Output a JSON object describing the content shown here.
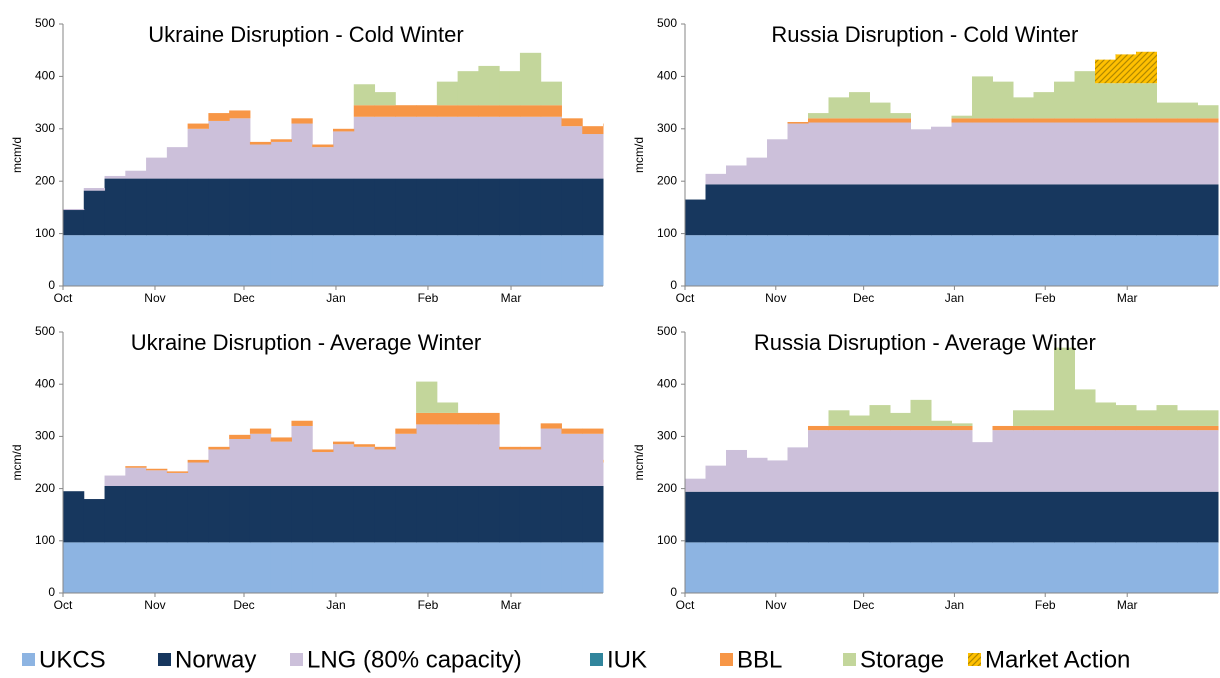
{
  "chart_data": [
    {
      "type": "area",
      "title": "Ukraine Disruption - Cold Winter",
      "ylabel": "mcm/d",
      "x": [
        0,
        7,
        14,
        21,
        28,
        35,
        42,
        49,
        56,
        63,
        70,
        77,
        84,
        91,
        98,
        105,
        112,
        119,
        126,
        133,
        140,
        147,
        154,
        161,
        168,
        175,
        182
      ],
      "xlim": [
        0,
        182
      ],
      "xticks": [
        {
          "value": 0,
          "label": "Oct"
        },
        {
          "value": 31,
          "label": "Nov"
        },
        {
          "value": 61,
          "label": "Dec"
        },
        {
          "value": 92,
          "label": "Jan"
        },
        {
          "value": 123,
          "label": "Feb"
        },
        {
          "value": 151,
          "label": "Mar"
        }
      ],
      "ylim": [
        0,
        500
      ],
      "yticks": [
        0,
        100,
        200,
        300,
        400,
        500
      ],
      "series": [
        {
          "name": "UKCS",
          "color": "#8db4e2",
          "values": [
            97,
            97,
            97,
            97,
            97,
            97,
            97,
            97,
            97,
            97,
            97,
            97,
            97,
            97,
            97,
            97,
            97,
            97,
            97,
            97,
            97,
            97,
            97,
            97,
            97,
            97,
            97
          ]
        },
        {
          "name": "Norway",
          "color": "#17375e",
          "values": [
            48,
            85,
            108,
            108,
            108,
            108,
            108,
            108,
            108,
            108,
            108,
            108,
            108,
            108,
            108,
            108,
            108,
            108,
            108,
            108,
            108,
            108,
            108,
            108,
            108,
            108,
            108
          ]
        },
        {
          "name": "LNG (80% capacity)",
          "color": "#ccc0da",
          "values": [
            2,
            5,
            5,
            15,
            40,
            60,
            95,
            110,
            115,
            65,
            70,
            105,
            60,
            90,
            118,
            118,
            118,
            118,
            118,
            118,
            118,
            118,
            118,
            118,
            100,
            85,
            95
          ]
        },
        {
          "name": "IUK",
          "color": "#31859c",
          "values": [
            0,
            0,
            0,
            0,
            0,
            0,
            0,
            0,
            0,
            0,
            0,
            0,
            0,
            0,
            0,
            0,
            0,
            0,
            0,
            0,
            0,
            0,
            0,
            0,
            0,
            0,
            0
          ]
        },
        {
          "name": "BBL",
          "color": "#f79646",
          "values": [
            0,
            0,
            0,
            0,
            0,
            0,
            10,
            15,
            15,
            5,
            5,
            10,
            5,
            5,
            22,
            22,
            22,
            22,
            22,
            22,
            22,
            22,
            22,
            22,
            15,
            15,
            10
          ]
        },
        {
          "name": "Storage",
          "color": "#c3d69b",
          "values": [
            0,
            0,
            0,
            0,
            0,
            0,
            0,
            0,
            0,
            0,
            0,
            0,
            0,
            0,
            40,
            25,
            0,
            0,
            45,
            65,
            75,
            65,
            100,
            45,
            0,
            0,
            0
          ]
        },
        {
          "name": "Market Action",
          "color": "#ffc000",
          "values": [
            0,
            0,
            0,
            0,
            0,
            0,
            0,
            0,
            0,
            0,
            0,
            0,
            0,
            0,
            0,
            0,
            0,
            0,
            0,
            0,
            0,
            0,
            0,
            0,
            0,
            0,
            0
          ]
        }
      ]
    },
    {
      "type": "area",
      "title": "Russia Disruption - Cold Winter",
      "ylabel": "mcm/d",
      "x": [
        0,
        7,
        14,
        21,
        28,
        35,
        42,
        49,
        56,
        63,
        70,
        77,
        84,
        91,
        98,
        105,
        112,
        119,
        126,
        133,
        140,
        147,
        154,
        161,
        168,
        175,
        182
      ],
      "xlim": [
        0,
        182
      ],
      "xticks": [
        {
          "value": 0,
          "label": "Oct"
        },
        {
          "value": 31,
          "label": "Nov"
        },
        {
          "value": 61,
          "label": "Dec"
        },
        {
          "value": 92,
          "label": "Jan"
        },
        {
          "value": 123,
          "label": "Feb"
        },
        {
          "value": 151,
          "label": "Mar"
        }
      ],
      "ylim": [
        0,
        500
      ],
      "yticks": [
        0,
        100,
        200,
        300,
        400,
        500
      ],
      "series": [
        {
          "name": "UKCS",
          "color": "#8db4e2",
          "values": [
            97,
            97,
            97,
            97,
            97,
            97,
            97,
            97,
            97,
            97,
            97,
            97,
            97,
            97,
            97,
            97,
            97,
            97,
            97,
            97,
            97,
            97,
            97,
            97,
            97,
            97,
            97
          ]
        },
        {
          "name": "Norway",
          "color": "#17375e",
          "values": [
            68,
            97,
            97,
            97,
            97,
            97,
            97,
            97,
            97,
            97,
            97,
            97,
            97,
            97,
            97,
            97,
            97,
            97,
            97,
            97,
            97,
            97,
            97,
            97,
            97,
            97,
            97
          ]
        },
        {
          "name": "LNG (80% capacity)",
          "color": "#ccc0da",
          "values": [
            0,
            20,
            36,
            51,
            86,
            116,
            118,
            118,
            118,
            118,
            118,
            105,
            110,
            118,
            118,
            118,
            118,
            118,
            118,
            118,
            118,
            118,
            118,
            118,
            118,
            118,
            118
          ]
        },
        {
          "name": "IUK",
          "color": "#31859c",
          "values": [
            0,
            0,
            0,
            0,
            0,
            0,
            0,
            0,
            0,
            0,
            0,
            0,
            0,
            0,
            0,
            0,
            0,
            0,
            0,
            0,
            0,
            0,
            0,
            0,
            0,
            0,
            0
          ]
        },
        {
          "name": "BBL",
          "color": "#f79646",
          "values": [
            0,
            0,
            0,
            0,
            0,
            3,
            8,
            8,
            8,
            8,
            8,
            0,
            0,
            8,
            8,
            8,
            8,
            8,
            8,
            8,
            8,
            8,
            8,
            8,
            8,
            8,
            8
          ]
        },
        {
          "name": "Storage",
          "color": "#c3d69b",
          "values": [
            0,
            0,
            0,
            0,
            0,
            0,
            10,
            40,
            50,
            30,
            10,
            0,
            0,
            5,
            80,
            70,
            40,
            50,
            70,
            90,
            67,
            67,
            67,
            30,
            30,
            25,
            20
          ]
        },
        {
          "name": "Market Action",
          "color": "#ffc000",
          "values": [
            0,
            0,
            0,
            0,
            0,
            0,
            0,
            0,
            0,
            0,
            0,
            0,
            0,
            0,
            0,
            0,
            0,
            0,
            0,
            0,
            45,
            55,
            60,
            0,
            0,
            0,
            0
          ]
        }
      ]
    },
    {
      "type": "area",
      "title": "Ukraine Disruption - Average Winter",
      "ylabel": "mcm/d",
      "x": [
        0,
        7,
        14,
        21,
        28,
        35,
        42,
        49,
        56,
        63,
        70,
        77,
        84,
        91,
        98,
        105,
        112,
        119,
        126,
        133,
        140,
        147,
        154,
        161,
        168,
        175,
        182
      ],
      "xlim": [
        0,
        182
      ],
      "xticks": [
        {
          "value": 0,
          "label": "Oct"
        },
        {
          "value": 31,
          "label": "Nov"
        },
        {
          "value": 61,
          "label": "Dec"
        },
        {
          "value": 92,
          "label": "Jan"
        },
        {
          "value": 123,
          "label": "Feb"
        },
        {
          "value": 151,
          "label": "Mar"
        }
      ],
      "ylim": [
        0,
        500
      ],
      "yticks": [
        0,
        100,
        200,
        300,
        400,
        500
      ],
      "series": [
        {
          "name": "UKCS",
          "color": "#8db4e2",
          "values": [
            97,
            97,
            97,
            97,
            97,
            97,
            97,
            97,
            97,
            97,
            97,
            97,
            97,
            97,
            97,
            97,
            97,
            97,
            97,
            97,
            97,
            97,
            97,
            97,
            97,
            97,
            97
          ]
        },
        {
          "name": "Norway",
          "color": "#17375e",
          "values": [
            98,
            83,
            108,
            108,
            108,
            108,
            108,
            108,
            108,
            108,
            108,
            108,
            108,
            108,
            108,
            108,
            108,
            108,
            108,
            108,
            108,
            108,
            108,
            108,
            108,
            108,
            108
          ]
        },
        {
          "name": "LNG (80% capacity)",
          "color": "#ccc0da",
          "values": [
            0,
            0,
            20,
            35,
            30,
            25,
            45,
            70,
            90,
            100,
            85,
            115,
            65,
            80,
            75,
            70,
            100,
            118,
            118,
            118,
            118,
            70,
            70,
            110,
            100,
            100,
            45
          ]
        },
        {
          "name": "IUK",
          "color": "#31859c",
          "values": [
            0,
            0,
            0,
            0,
            0,
            0,
            0,
            0,
            0,
            0,
            0,
            0,
            0,
            0,
            0,
            0,
            0,
            0,
            0,
            0,
            0,
            0,
            0,
            0,
            0,
            0,
            0
          ]
        },
        {
          "name": "BBL",
          "color": "#f79646",
          "values": [
            0,
            0,
            0,
            3,
            3,
            3,
            5,
            5,
            8,
            10,
            8,
            10,
            5,
            5,
            5,
            5,
            10,
            22,
            22,
            22,
            22,
            5,
            5,
            10,
            10,
            10,
            5
          ]
        },
        {
          "name": "Storage",
          "color": "#c3d69b",
          "values": [
            0,
            0,
            0,
            0,
            0,
            0,
            0,
            0,
            0,
            0,
            0,
            0,
            0,
            0,
            0,
            0,
            0,
            60,
            20,
            0,
            0,
            0,
            0,
            0,
            0,
            0,
            0
          ]
        },
        {
          "name": "Market Action",
          "color": "#ffc000",
          "values": [
            0,
            0,
            0,
            0,
            0,
            0,
            0,
            0,
            0,
            0,
            0,
            0,
            0,
            0,
            0,
            0,
            0,
            0,
            0,
            0,
            0,
            0,
            0,
            0,
            0,
            0,
            0
          ]
        }
      ]
    },
    {
      "type": "area",
      "title": "Russia Disruption - Average Winter",
      "ylabel": "mcm/d",
      "x": [
        0,
        7,
        14,
        21,
        28,
        35,
        42,
        49,
        56,
        63,
        70,
        77,
        84,
        91,
        98,
        105,
        112,
        119,
        126,
        133,
        140,
        147,
        154,
        161,
        168,
        175,
        182
      ],
      "xlim": [
        0,
        182
      ],
      "xticks": [
        {
          "value": 0,
          "label": "Oct"
        },
        {
          "value": 31,
          "label": "Nov"
        },
        {
          "value": 61,
          "label": "Dec"
        },
        {
          "value": 92,
          "label": "Jan"
        },
        {
          "value": 123,
          "label": "Feb"
        },
        {
          "value": 151,
          "label": "Mar"
        }
      ],
      "ylim": [
        0,
        500
      ],
      "yticks": [
        0,
        100,
        200,
        300,
        400,
        500
      ],
      "series": [
        {
          "name": "UKCS",
          "color": "#8db4e2",
          "values": [
            97,
            97,
            97,
            97,
            97,
            97,
            97,
            97,
            97,
            97,
            97,
            97,
            97,
            97,
            97,
            97,
            97,
            97,
            97,
            97,
            97,
            97,
            97,
            97,
            97,
            97,
            97
          ]
        },
        {
          "name": "Norway",
          "color": "#17375e",
          "values": [
            97,
            97,
            97,
            97,
            97,
            97,
            97,
            97,
            97,
            97,
            97,
            97,
            97,
            97,
            97,
            97,
            97,
            97,
            97,
            97,
            97,
            97,
            97,
            97,
            97,
            97,
            97
          ]
        },
        {
          "name": "LNG (80% capacity)",
          "color": "#ccc0da",
          "values": [
            25,
            50,
            80,
            65,
            60,
            85,
            118,
            118,
            118,
            118,
            118,
            118,
            118,
            118,
            95,
            118,
            118,
            118,
            118,
            118,
            118,
            118,
            118,
            118,
            118,
            118,
            118
          ]
        },
        {
          "name": "IUK",
          "color": "#31859c",
          "values": [
            0,
            0,
            0,
            0,
            0,
            0,
            0,
            0,
            0,
            0,
            0,
            0,
            0,
            0,
            0,
            0,
            0,
            0,
            0,
            0,
            0,
            0,
            0,
            0,
            0,
            0,
            0
          ]
        },
        {
          "name": "BBL",
          "color": "#f79646",
          "values": [
            0,
            0,
            0,
            0,
            0,
            0,
            8,
            8,
            8,
            8,
            8,
            8,
            8,
            8,
            0,
            8,
            8,
            8,
            8,
            8,
            8,
            8,
            8,
            8,
            8,
            8,
            8
          ]
        },
        {
          "name": "Storage",
          "color": "#c3d69b",
          "values": [
            0,
            0,
            0,
            0,
            0,
            0,
            0,
            30,
            20,
            40,
            25,
            50,
            10,
            5,
            0,
            0,
            30,
            30,
            150,
            70,
            45,
            40,
            30,
            40,
            30,
            30,
            5
          ]
        },
        {
          "name": "Market Action",
          "color": "#ffc000",
          "values": [
            0,
            0,
            0,
            0,
            0,
            0,
            0,
            0,
            0,
            0,
            0,
            0,
            0,
            0,
            0,
            0,
            0,
            0,
            0,
            0,
            0,
            0,
            0,
            0,
            0,
            0,
            0
          ]
        }
      ]
    }
  ]
}
